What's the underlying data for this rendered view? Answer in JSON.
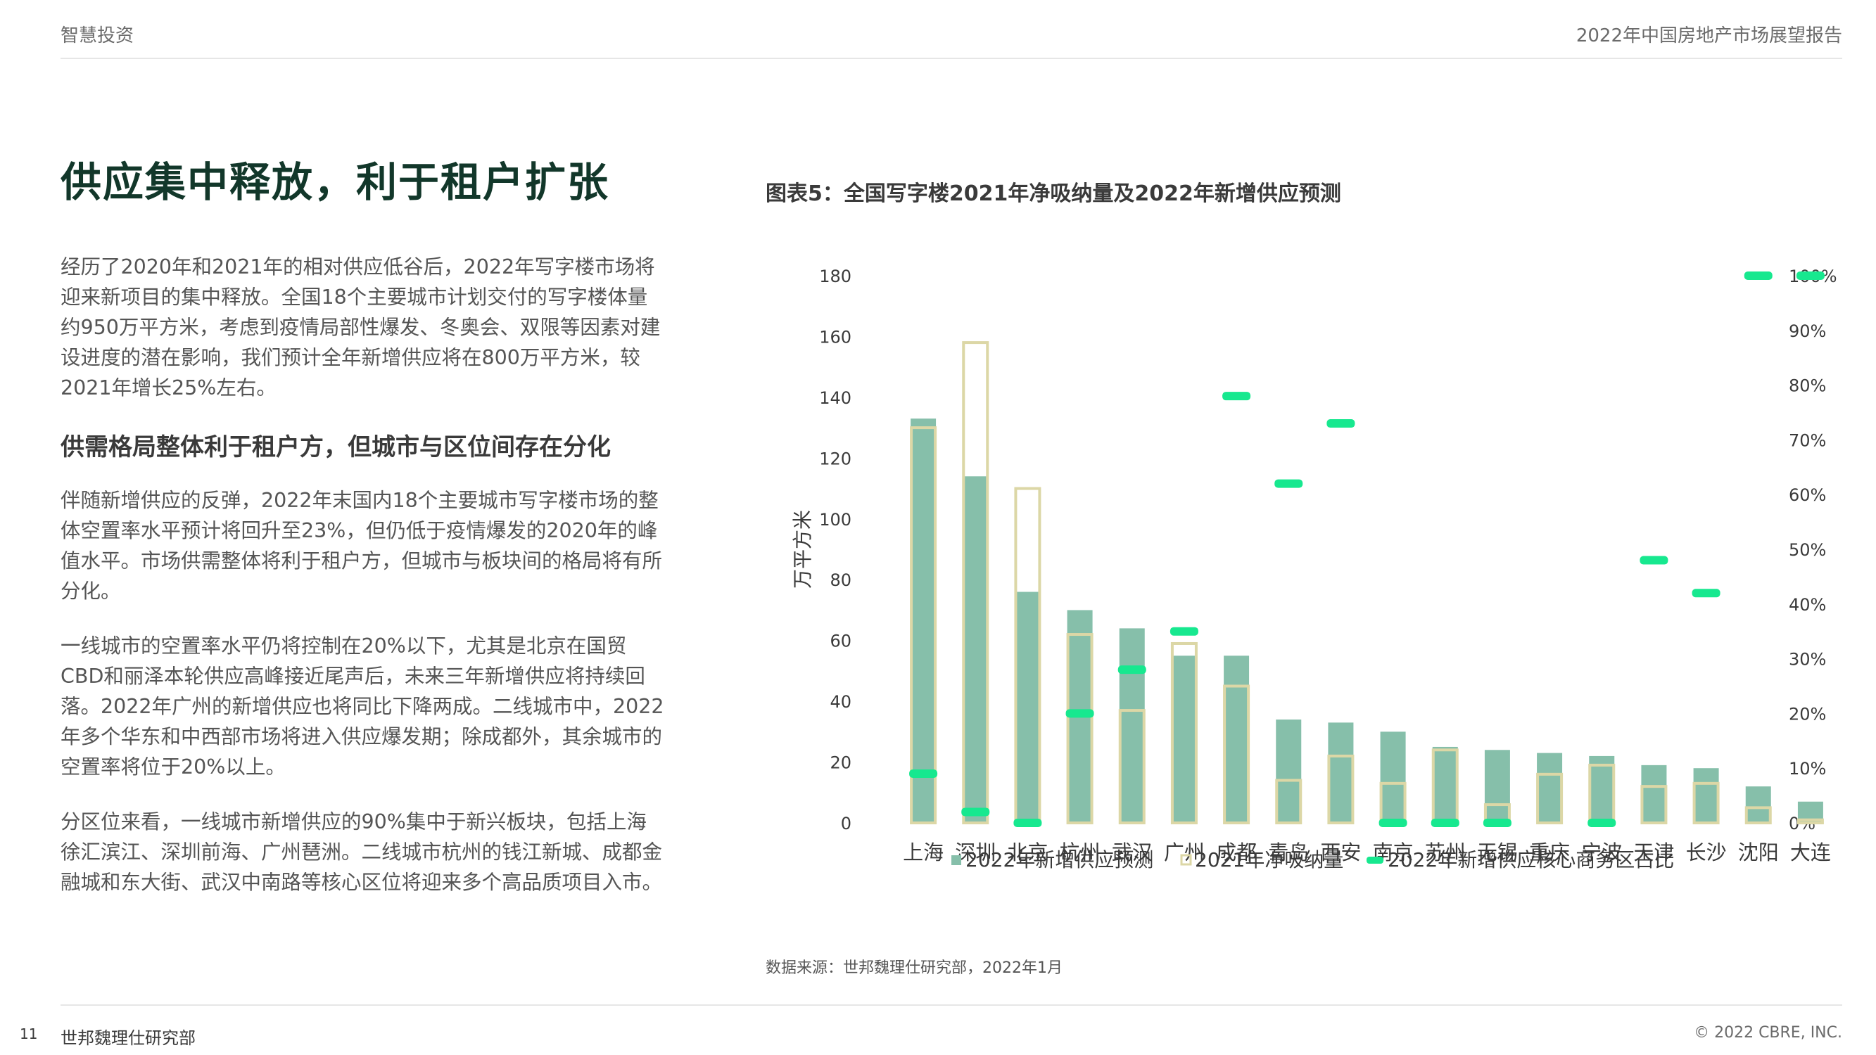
{
  "header": {
    "brand": "智慧投资",
    "report_title": "2022年中国房地产市场展望报告"
  },
  "main_title": "供应集中释放，利于租户扩张",
  "paragraphs": {
    "p1": "经历了2020年和2021年的相对供应低谷后，2022年写字楼市场将迎来新项目的集中释放。全国18个主要城市计划交付的写字楼体量约950万平方米，考虑到疫情局部性爆发、冬奥会、双限等因素对建设进度的潜在影响，我们预计全年新增供应将在800万平方米，较2021年增长25%左右。",
    "subhead": "供需格局整体利于租户方，但城市与区位间存在分化",
    "p2": "伴随新增供应的反弹，2022年末国内18个主要城市写字楼市场的整体空置率水平预计将回升至23%，但仍低于疫情爆发的2020年的峰值水平。市场供需整体将利于租户方，但城市与板块间的格局将有所分化。",
    "p3": "一线城市的空置率水平仍将控制在20%以下，尤其是北京在国贸CBD和丽泽本轮供应高峰接近尾声后，未来三年新增供应将持续回落。2022年广州的新增供应也将同比下降两成。二线城市中，2022年多个华东和中西部市场将进入供应爆发期；除成都外，其余城市的空置率将位于20%以上。",
    "p4": "分区位来看，一线城市新增供应的90%集中于新兴板块，包括上海徐汇滨江、深圳前海、广州琶洲。二线城市杭州的钱江新城、成都金融城和东大街、武汉中南路等核心区位将迎来多个高品质项目入市。"
  },
  "chart_title": "图表5：全国写字楼2021年净吸纳量及2022年新增供应预测",
  "source": "数据来源：世邦魏理仕研究部，2022年1月",
  "footer": {
    "page_number": "11",
    "org": "世邦魏理仕研究部",
    "copyright": "© 2022 CBRE, INC."
  },
  "colors": {
    "supply": "#86bfaa",
    "absorption_outline": "#dcd7a6",
    "cbd_share": "#17e88f",
    "title": "#12372a"
  },
  "chart_data": {
    "type": "bar",
    "categories": [
      "上海",
      "深圳",
      "北京",
      "杭州",
      "武汉",
      "广州",
      "成都",
      "青岛",
      "西安",
      "南京",
      "苏州",
      "无锡",
      "重庆",
      "宁波",
      "天津",
      "长沙",
      "沈阳",
      "大连"
    ],
    "series": [
      {
        "name": "2022年新增供应预测",
        "axis": "left",
        "values": [
          133,
          114,
          76,
          70,
          64,
          55,
          55,
          34,
          33,
          30,
          25,
          24,
          23,
          22,
          19,
          18,
          12,
          7
        ]
      },
      {
        "name": "2021年净吸纳量",
        "axis": "left",
        "values": [
          130,
          158,
          110,
          62,
          37,
          59,
          45,
          14,
          22,
          13,
          24,
          6,
          16,
          19,
          12,
          13,
          5,
          1
        ]
      },
      {
        "name": "2022年新增供应核心商务区占比",
        "axis": "right",
        "values": [
          9,
          2,
          0,
          20,
          28,
          35,
          78,
          62,
          73,
          0,
          0,
          0,
          null,
          0,
          48,
          42,
          100,
          100
        ]
      }
    ],
    "ylabel": "万平方米",
    "ylim": [
      0,
      180
    ],
    "yticks": [
      "0",
      "20",
      "40",
      "60",
      "80",
      "100",
      "120",
      "140",
      "160",
      "180"
    ],
    "y2lim": [
      0,
      100
    ],
    "y2ticks": [
      "0%",
      "10%",
      "20%",
      "30%",
      "40%",
      "50%",
      "60%",
      "70%",
      "80%",
      "90%",
      "100%"
    ],
    "legend_position": "bottom",
    "grid": false
  }
}
